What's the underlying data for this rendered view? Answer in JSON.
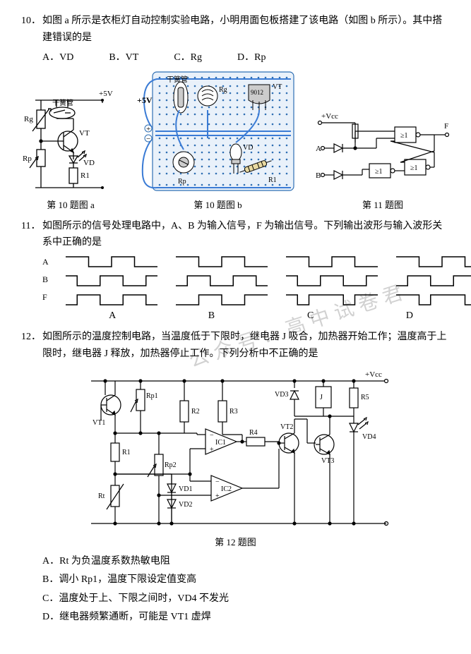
{
  "watermark": "公众号：高中试卷君",
  "q10": {
    "num": "10．",
    "stem": "如图 a 所示是衣柜灯自动控制实验电路，小明用面包板搭建了该电路（如图 b 所示）。其中搭建错误的是",
    "opts": {
      "a": "A．VD",
      "b": "B．VT",
      "c": "C．Rg",
      "d": "D．Rp"
    },
    "fig_a_cap": "第 10 题图 a",
    "fig_b_cap": "第 10 题图 b",
    "fig_c_cap": "第 11 题图",
    "labels": {
      "v5": "+5V",
      "reed": "干簧管",
      "rg": "Rg",
      "vt": "VT",
      "vd": "VD",
      "rp": "Rp",
      "r1": "R1",
      "v5b": "+5V",
      "plus": "+",
      "minus": "−",
      "reed_b": "干簧管",
      "rg_b": "Rg",
      "vt_b": "VT",
      "num9012": "9012",
      "vd_b": "VD",
      "rp_b": "Rp",
      "r1_b": "R1",
      "vcc": "+Vcc",
      "A": "A",
      "B": "B",
      "F": "F",
      "gate": "≥1"
    }
  },
  "q11": {
    "num": "11．",
    "stem": "如图所示的信号处理电路中，A、B 为输入信号，F 为输出信号。下列输出波形与输入波形关系中正确的是",
    "rowlabels": {
      "a": "A",
      "b": "B",
      "f": "F"
    },
    "opts": {
      "a": "A",
      "b": "B",
      "c": "C",
      "d": "D"
    },
    "waveforms": {
      "styling": {
        "stroke": "#000000",
        "stroke_width": 1.5,
        "w": 130,
        "h": 18
      },
      "optA": {
        "A": [
          1,
          1,
          0,
          0,
          1,
          1,
          0,
          0
        ],
        "B": [
          1,
          0,
          0,
          1,
          1,
          0,
          0,
          1
        ],
        "F": [
          0,
          1,
          1,
          0,
          0,
          1,
          1,
          0
        ]
      },
      "optB": {
        "A": [
          1,
          1,
          0,
          0,
          1,
          1,
          0,
          0
        ],
        "B": [
          0,
          1,
          1,
          0,
          0,
          1,
          1,
          0
        ],
        "F": [
          0,
          0,
          1,
          1,
          0,
          0,
          1,
          1
        ]
      },
      "optC": {
        "A": [
          1,
          1,
          0,
          0,
          1,
          1,
          0,
          0
        ],
        "B": [
          1,
          0,
          0,
          1,
          1,
          0,
          0,
          1
        ],
        "F": [
          1,
          0,
          1,
          1,
          1,
          0,
          1,
          1
        ]
      },
      "optD": {
        "A": [
          1,
          1,
          0,
          0,
          1,
          1,
          0,
          0
        ],
        "B": [
          0,
          1,
          1,
          0,
          0,
          1,
          1,
          0
        ],
        "F": [
          1,
          1,
          0,
          1,
          1,
          1,
          0,
          1
        ]
      }
    }
  },
  "q12": {
    "num": "12．",
    "stem": "如图所示的温度控制电路，当温度低于下限时，继电器 J 吸合，加热器开始工作；温度高于上限时，继电器 J 释放，加热器停止工作。下列分析中不正确的是",
    "fig_cap": "第 12 题图",
    "labels": {
      "vcc": "+Vcc",
      "rp1": "Rp1",
      "rp2": "Rp2",
      "r1": "R1",
      "r2": "R2",
      "r3": "R3",
      "r4": "R4",
      "r5": "R5",
      "rt": "Rt",
      "vt1": "VT1",
      "vt2": "VT2",
      "vt3": "VT3",
      "vd1": "VD1",
      "vd2": "VD2",
      "vd3": "VD3",
      "vd4": "VD4",
      "ic1": "IC1",
      "ic2": "IC2",
      "j": "J",
      "plus": "+",
      "minus": "−"
    },
    "opts": {
      "a": "A．Rt 为负温度系数热敏电阻",
      "b": "B．调小 Rp1，温度下限设定值变高",
      "c": "C．温度处于上、下限之间时，VD4 不发光",
      "d": "D．继电器频繁通断，可能是 VT1 虚焊"
    }
  },
  "colors": {
    "stroke": "#000000",
    "dot": "#2f6fb3",
    "breadboard_fill": "#e9f1fa",
    "breadboard_border": "#2f6fb3",
    "wire": "#3a7bd5",
    "gray_fill": "#cccccc"
  }
}
